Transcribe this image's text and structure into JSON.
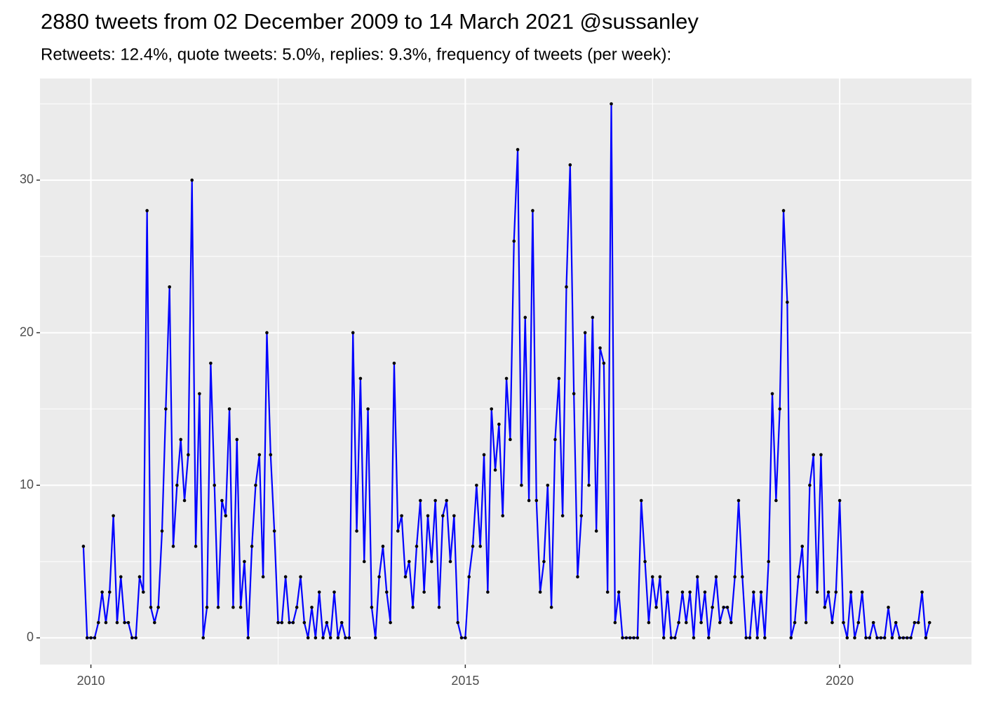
{
  "chart_data": {
    "type": "line",
    "title": "2880 tweets from 02 December 2009 to 14 March 2021 @sussanley",
    "subtitle": "Retweets: 12.4%, quote tweets: 5.0%, replies: 9.3%, frequency of tweets (per week):",
    "x": [
      2009.9,
      2009.95,
      2010,
      2010.05,
      2010.1,
      2010.15,
      2010.2,
      2010.25,
      2010.3,
      2010.35,
      2010.4,
      2010.45,
      2010.5,
      2010.55,
      2010.6,
      2010.65,
      2010.7,
      2010.75,
      2010.8,
      2010.85,
      2010.9,
      2010.95,
      2011,
      2011.05,
      2011.1,
      2011.15,
      2011.2,
      2011.25,
      2011.3,
      2011.35,
      2011.4,
      2011.45,
      2011.5,
      2011.55,
      2011.6,
      2011.65,
      2011.7,
      2011.75,
      2011.8,
      2011.85,
      2011.9,
      2011.95,
      2012,
      2012.05,
      2012.1,
      2012.15,
      2012.2,
      2012.25,
      2012.3,
      2012.35,
      2012.4,
      2012.45,
      2012.5,
      2012.55,
      2012.6,
      2012.65,
      2012.7,
      2012.75,
      2012.8,
      2012.85,
      2012.9,
      2012.95,
      2013,
      2013.05,
      2013.1,
      2013.15,
      2013.2,
      2013.25,
      2013.3,
      2013.35,
      2013.4,
      2013.45,
      2013.5,
      2013.55,
      2013.6,
      2013.65,
      2013.7,
      2013.75,
      2013.8,
      2013.85,
      2013.9,
      2013.95,
      2014,
      2014.05,
      2014.1,
      2014.15,
      2014.2,
      2014.25,
      2014.3,
      2014.35,
      2014.4,
      2014.45,
      2014.5,
      2014.55,
      2014.6,
      2014.65,
      2014.7,
      2014.75,
      2014.8,
      2014.85,
      2014.9,
      2014.95,
      2015,
      2015.05,
      2015.1,
      2015.15,
      2015.2,
      2015.25,
      2015.3,
      2015.35,
      2015.4,
      2015.45,
      2015.5,
      2015.55,
      2015.6,
      2015.65,
      2015.7,
      2015.75,
      2015.8,
      2015.85,
      2015.9,
      2015.95,
      2016,
      2016.05,
      2016.1,
      2016.15,
      2016.2,
      2016.25,
      2016.3,
      2016.35,
      2016.4,
      2016.45,
      2016.5,
      2016.55,
      2016.6,
      2016.65,
      2016.7,
      2016.75,
      2016.8,
      2016.85,
      2016.9,
      2016.95,
      2017,
      2017.05,
      2017.1,
      2017.15,
      2017.2,
      2017.25,
      2017.3,
      2017.35,
      2017.4,
      2017.45,
      2017.5,
      2017.55,
      2017.6,
      2017.65,
      2017.7,
      2017.75,
      2017.8,
      2017.85,
      2017.9,
      2017.95,
      2018,
      2018.05,
      2018.1,
      2018.15,
      2018.2,
      2018.25,
      2018.3,
      2018.35,
      2018.4,
      2018.45,
      2018.5,
      2018.55,
      2018.6,
      2018.65,
      2018.7,
      2018.75,
      2018.8,
      2018.85,
      2018.9,
      2018.95,
      2019,
      2019.05,
      2019.1,
      2019.15,
      2019.2,
      2019.25,
      2019.3,
      2019.35,
      2019.4,
      2019.45,
      2019.5,
      2019.55,
      2019.6,
      2019.65,
      2019.7,
      2019.75,
      2019.8,
      2019.85,
      2019.9,
      2019.95,
      2020,
      2020.05,
      2020.1,
      2020.15,
      2020.2,
      2020.25,
      2020.3,
      2020.35,
      2020.4,
      2020.45,
      2020.5,
      2020.55,
      2020.6,
      2020.65,
      2020.7,
      2020.75,
      2020.8,
      2020.85,
      2020.9,
      2020.95,
      2021,
      2021.05,
      2021.1,
      2021.15,
      2021.2
    ],
    "series": [
      {
        "color": "#0000ff",
        "values": [
          6,
          0,
          0,
          0,
          1,
          3,
          1,
          3,
          8,
          1,
          4,
          1,
          1,
          0,
          0,
          4,
          3,
          28,
          2,
          1,
          2,
          7,
          15,
          23,
          6,
          10,
          13,
          9,
          12,
          30,
          6,
          16,
          0,
          2,
          18,
          10,
          2,
          9,
          8,
          15,
          2,
          13,
          2,
          5,
          0,
          6,
          10,
          12,
          4,
          20,
          12,
          7,
          1,
          1,
          4,
          1,
          1,
          2,
          4,
          1,
          0,
          2,
          0,
          3,
          0,
          1,
          0,
          3,
          0,
          1,
          0,
          0,
          20,
          7,
          17,
          5,
          15,
          2,
          0,
          4,
          6,
          3,
          1,
          18,
          7,
          8,
          4,
          5,
          2,
          6,
          9,
          3,
          8,
          5,
          9,
          2,
          8,
          9,
          5,
          8,
          1,
          0,
          0,
          4,
          6,
          10,
          6,
          12,
          3,
          15,
          11,
          14,
          8,
          17,
          13,
          26,
          32,
          10,
          21,
          9,
          28,
          9,
          3,
          5,
          10,
          2,
          13,
          17,
          8,
          23,
          31,
          16,
          4,
          8,
          20,
          10,
          21,
          7,
          19,
          18,
          3,
          35,
          1,
          3,
          0,
          0,
          0,
          0,
          0,
          9,
          5,
          1,
          4,
          2,
          4,
          0,
          3,
          0,
          0,
          1,
          3,
          1,
          3,
          0,
          4,
          1,
          3,
          0,
          2,
          4,
          1,
          2,
          2,
          1,
          4,
          9,
          4,
          0,
          0,
          3,
          0,
          3,
          0,
          5,
          16,
          9,
          15,
          28,
          22,
          0,
          1,
          4,
          6,
          1,
          10,
          12,
          3,
          12,
          2,
          3,
          1,
          3,
          9,
          1,
          0,
          3,
          0,
          1,
          3,
          0,
          0,
          1,
          0,
          0,
          0,
          2,
          0,
          1,
          0,
          0,
          0,
          0,
          1,
          1,
          3,
          0,
          1
        ]
      }
    ],
    "xlim": [
      2009.32,
      2021.76
    ],
    "xticks": [
      2010,
      2015,
      2020
    ],
    "ylim": [
      -1.75,
      36.66
    ],
    "yticks": [
      0,
      10,
      20,
      30
    ],
    "grid": true
  }
}
